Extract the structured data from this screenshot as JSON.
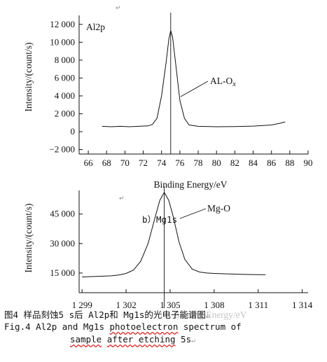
{
  "chart_data": [
    {
      "type": "line",
      "panel_label": "Al2p",
      "xlabel": "Binding Energy/eV",
      "ylabel": "Intensity/(count/s)",
      "xlim": [
        65,
        90
      ],
      "ylim": [
        -2500,
        13000
      ],
      "x_ticks": [
        66,
        68,
        70,
        72,
        74,
        76,
        78,
        80,
        82,
        84,
        86,
        88,
        90
      ],
      "x_tick_labels": [
        "66",
        "68",
        "70",
        "72",
        "74",
        "76",
        "78",
        "80",
        "82",
        "84",
        "86",
        "88",
        "90"
      ],
      "y_ticks": [
        -2000,
        0,
        2000,
        4000,
        6000,
        8000,
        10000,
        12000
      ],
      "y_tick_labels": [
        "−2 000",
        "0",
        "2 000",
        "4 000",
        "6 000",
        "8 000",
        "10 000",
        "12 000"
      ],
      "reference_line_x": 75,
      "annotation": "AL-O",
      "annotation_sub": "x",
      "series": [
        {
          "x": [
            67.5,
            68.5,
            69.5,
            70.5,
            71.5,
            72.5,
            73.0,
            73.5,
            74.0,
            74.5,
            74.8,
            75.0,
            75.2,
            75.5,
            76.0,
            76.5,
            77.0,
            78.0,
            80.0,
            82.0,
            84.0,
            86.0,
            87.0,
            87.5
          ],
          "y": [
            600,
            550,
            600,
            550,
            600,
            650,
            800,
            1500,
            4000,
            7800,
            10400,
            11300,
            10600,
            8000,
            3500,
            1500,
            750,
            600,
            550,
            580,
            620,
            750,
            950,
            1100
          ]
        }
      ]
    },
    {
      "type": "line",
      "xlabel": "Binding Energy/eV",
      "ylabel": "Intensity/(count/s)",
      "xlim": [
        1298.8,
        1314.4
      ],
      "ylim": [
        5000,
        57000
      ],
      "x_ticks": [
        1299,
        1302,
        1305,
        1308,
        1311,
        1314
      ],
      "x_tick_labels": [
        "1 299",
        "1 302",
        "1 305",
        "1 308",
        "1 311",
        "1 314"
      ],
      "y_ticks": [
        15000,
        30000,
        45000
      ],
      "y_tick_labels": [
        "15 000",
        "30 000",
        "45 000"
      ],
      "reference_line_x": 1304.6,
      "inline_label": "b）Mg1s",
      "annotation": "Mg-O",
      "series": [
        {
          "x": [
            1299.0,
            1300.0,
            1301.0,
            1301.5,
            1302.0,
            1302.5,
            1303.0,
            1303.5,
            1304.0,
            1304.3,
            1304.6,
            1304.9,
            1305.2,
            1305.6,
            1306.0,
            1306.5,
            1307.0,
            1307.5,
            1308.0,
            1309.0,
            1310.0,
            1311.0,
            1311.5
          ],
          "y": [
            13000,
            13300,
            13600,
            14000,
            14800,
            16500,
            21000,
            30000,
            44000,
            52000,
            56000,
            52000,
            44000,
            31000,
            22000,
            17000,
            15500,
            15000,
            14800,
            14500,
            14300,
            14200,
            14100
          ]
        }
      ]
    }
  ],
  "caption": {
    "line1": "图4  样品刻蚀5 s后 Al2p和 Mg1s的光电子能谱图",
    "line2_prefix": "Fig.4   Al2p and Mg1s ",
    "line2_squiggle": "photoelectron",
    "line2_suffix": " spectrum of",
    "line3_prefix": "sample",
    "line3_squiggle": "after etching",
    "line3_suffix": " 5s"
  },
  "colors": {
    "line": "#111111",
    "axis": "#111111",
    "squiggle": "#dd2222"
  }
}
